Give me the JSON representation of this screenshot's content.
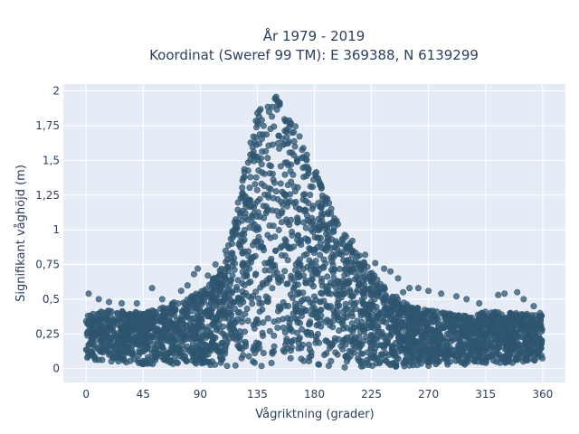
{
  "chart_data": {
    "type": "scatter",
    "title_line1": "År 1979 - 2019",
    "title_line2": "Koordinat (Sweref 99 TM): E 369388, N 6139299",
    "xlabel": "Vågriktning (grader)",
    "ylabel": "Signifikant våghöjd (m)",
    "xlim": [
      -18,
      378
    ],
    "ylim": [
      -0.1,
      2.05
    ],
    "x_ticks": [
      0,
      45,
      90,
      135,
      180,
      225,
      270,
      315,
      360
    ],
    "x_tick_labels": [
      "0",
      "45",
      "90",
      "135",
      "180",
      "225",
      "270",
      "315",
      "360"
    ],
    "y_ticks": [
      0,
      0.25,
      0.5,
      0.75,
      1,
      1.25,
      1.5,
      1.75,
      2
    ],
    "y_tick_labels": [
      "0",
      "0,25",
      "0,5",
      "0,75",
      "1",
      "1,25",
      "1,5",
      "1,75",
      "2"
    ],
    "grid": true,
    "marker_color": "#2f5570",
    "plot_bg": "#e5ecf6",
    "envelope": {
      "direction": [
        0,
        15,
        30,
        45,
        60,
        75,
        90,
        105,
        115,
        125,
        135,
        145,
        150,
        155,
        165,
        180,
        195,
        210,
        225,
        240,
        255,
        270,
        285,
        300,
        315,
        330,
        345,
        360
      ],
      "lower": [
        0.04,
        0.04,
        0.04,
        0.03,
        0.03,
        0.02,
        0.02,
        0.02,
        0.01,
        0.01,
        0.0,
        0.0,
        0.0,
        0.0,
        0.0,
        0.0,
        0.0,
        0.0,
        0.0,
        0.01,
        0.01,
        0.02,
        0.02,
        0.03,
        0.03,
        0.03,
        0.04,
        0.04
      ],
      "upper": [
        0.38,
        0.42,
        0.42,
        0.4,
        0.44,
        0.5,
        0.55,
        0.7,
        1.0,
        1.45,
        1.85,
        1.95,
        1.97,
        1.95,
        1.75,
        1.45,
        1.12,
        0.88,
        0.7,
        0.55,
        0.45,
        0.42,
        0.4,
        0.38,
        0.42,
        0.4,
        0.4,
        0.38
      ]
    },
    "outliers": [
      [
        2,
        0.54
      ],
      [
        10,
        0.5
      ],
      [
        18,
        0.48
      ],
      [
        28,
        0.47
      ],
      [
        40,
        0.47
      ],
      [
        52,
        0.58
      ],
      [
        60,
        0.5
      ],
      [
        75,
        0.56
      ],
      [
        80,
        0.6
      ],
      [
        85,
        0.68
      ],
      [
        88,
        0.72
      ],
      [
        96,
        0.67
      ],
      [
        102,
        0.75
      ],
      [
        110,
        0.85
      ],
      [
        115,
        0.9
      ],
      [
        120,
        1.05
      ],
      [
        210,
        0.92
      ],
      [
        220,
        0.82
      ],
      [
        228,
        0.76
      ],
      [
        235,
        0.72
      ],
      [
        240,
        0.7
      ],
      [
        246,
        0.65
      ],
      [
        250,
        0.55
      ],
      [
        255,
        0.58
      ],
      [
        262,
        0.58
      ],
      [
        270,
        0.56
      ],
      [
        280,
        0.54
      ],
      [
        292,
        0.52
      ],
      [
        300,
        0.5
      ],
      [
        310,
        0.47
      ],
      [
        325,
        0.53
      ],
      [
        330,
        0.54
      ],
      [
        340,
        0.55
      ],
      [
        345,
        0.5
      ],
      [
        353,
        0.45
      ],
      [
        358,
        0.4
      ]
    ]
  }
}
